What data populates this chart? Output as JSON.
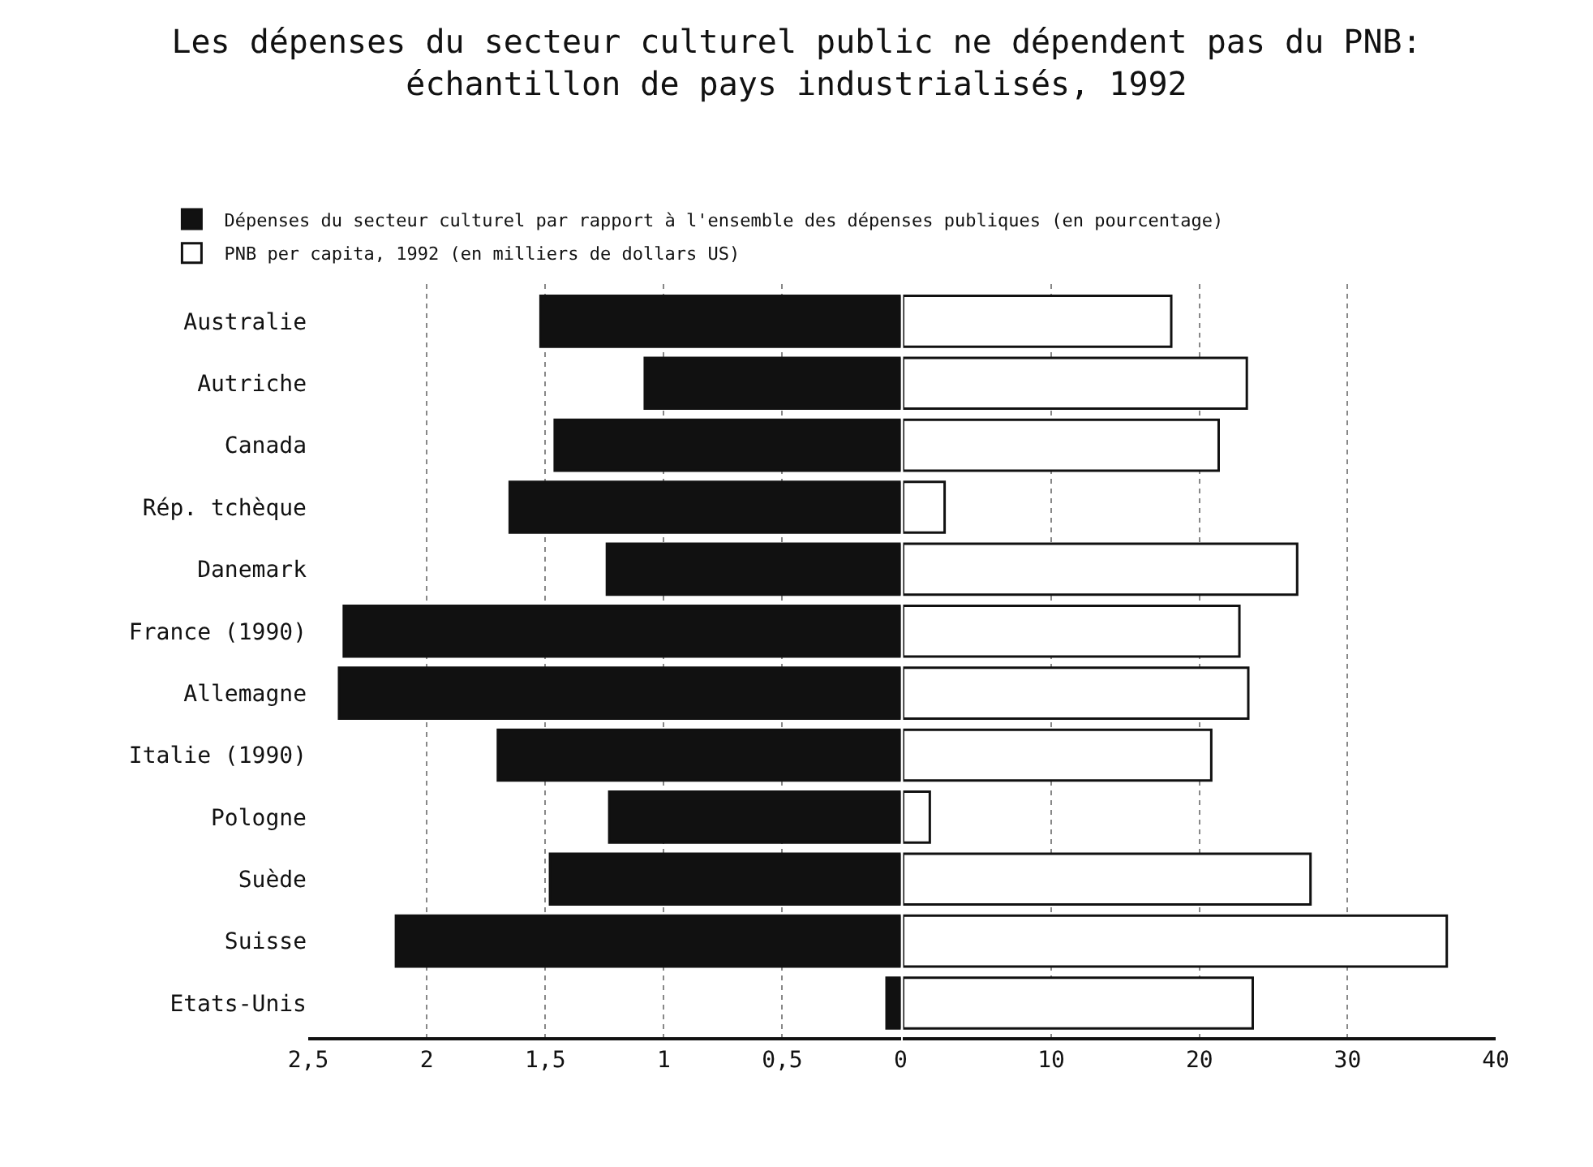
{
  "chart_data": [
    {
      "type": "bar",
      "orientation": "horizontal",
      "title": "Les dépenses du secteur culturel public ne dépendent pas du PNB:\néchantillon de pays industrialisés, 1992",
      "categories": [
        "Australie",
        "Autriche",
        "Canada",
        "Rép. tchèque",
        "Danemark",
        "France (1990)",
        "Allemagne",
        "Italie (1990)",
        "Pologne",
        "Suède",
        "Suisse",
        "Etats-Unis"
      ],
      "series": [
        {
          "name": "Dépenses du secteur culturel par rapport à l'ensemble des dépenses publiques (en pourcentage)",
          "color": "#111111",
          "values": [
            1.52,
            1.08,
            1.46,
            1.65,
            1.24,
            2.35,
            2.37,
            1.7,
            1.23,
            1.48,
            2.13,
            0.06
          ]
        }
      ],
      "xlim": [
        2.5,
        0
      ],
      "xticks": [
        {
          "value": 2.5,
          "label": "2,5"
        },
        2,
        {
          "value": 1.5,
          "label": "1,5"
        },
        1,
        {
          "value": 0.5,
          "label": "0,5"
        },
        0
      ],
      "grid": "x",
      "legend": "top"
    },
    {
      "type": "bar",
      "orientation": "horizontal",
      "categories": [
        "Australie",
        "Autriche",
        "Canada",
        "Rép. tchèque",
        "Danemark",
        "France (1990)",
        "Allemagne",
        "Italie (1990)",
        "Pologne",
        "Suède",
        "Suisse",
        "Etats-Unis"
      ],
      "series": [
        {
          "name": "PNB per capita, 1992 (en milliers de dollars US)",
          "color": "#ffffff",
          "values": [
            18.1,
            23.2,
            21.3,
            2.8,
            26.6,
            22.7,
            23.3,
            20.8,
            1.8,
            27.5,
            36.7,
            23.6
          ]
        }
      ],
      "xlim": [
        0,
        40
      ],
      "xticks": [
        10,
        20,
        30,
        40
      ],
      "grid": "x",
      "tick_labels": "x",
      "legend": "top"
    }
  ]
}
